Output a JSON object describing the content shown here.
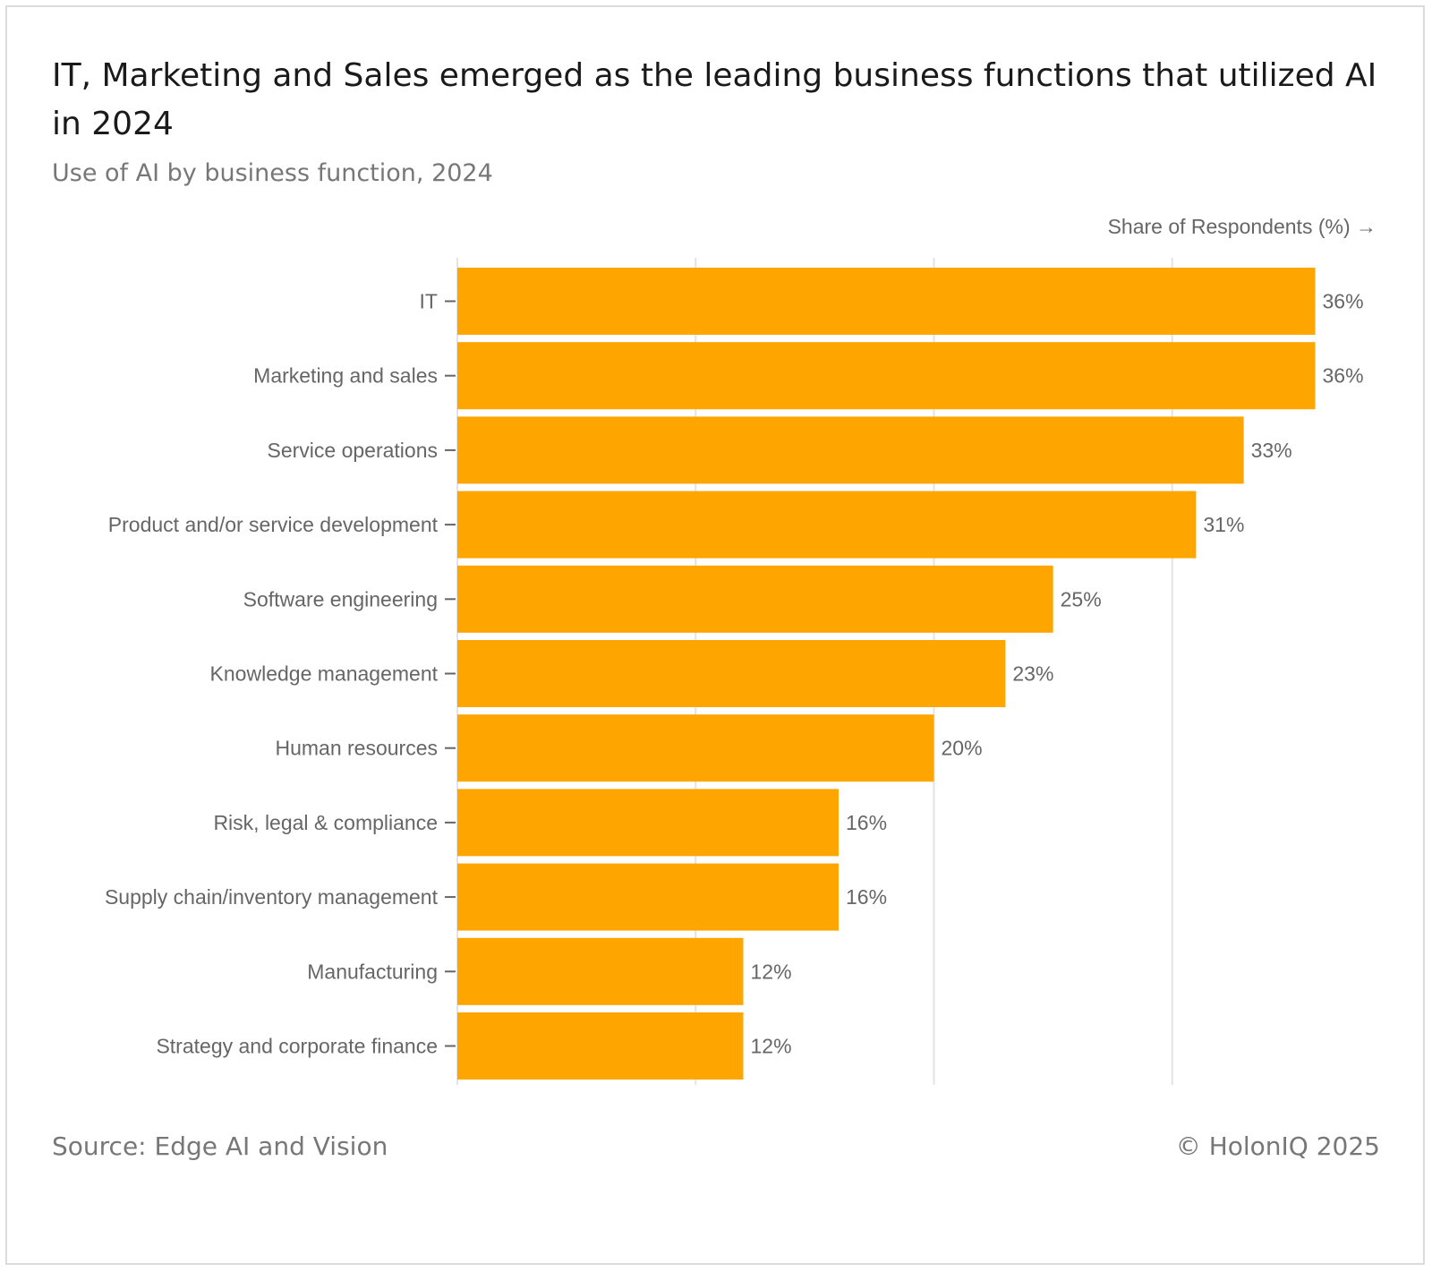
{
  "chart_data": {
    "type": "bar",
    "orientation": "horizontal",
    "title": "IT, Marketing and Sales emerged as the leading business functions that utilized AI in 2024",
    "subtitle": "Use of AI by business function, 2024",
    "xlabel": "Share of Respondents (%) →",
    "categories": [
      "IT",
      "Marketing and sales",
      "Service operations",
      "Product and/or service development",
      "Software engineering",
      "Knowledge management",
      "Human resources",
      "Risk, legal & compliance",
      "Supply chain/inventory management",
      "Manufacturing",
      "Strategy and corporate finance"
    ],
    "values": [
      36,
      36,
      33,
      31,
      25,
      23,
      20,
      16,
      16,
      12,
      12
    ],
    "value_labels": [
      "36%",
      "36%",
      "33%",
      "31%",
      "25%",
      "23%",
      "20%",
      "16%",
      "16%",
      "12%",
      "12%"
    ],
    "xlim": [
      0,
      40
    ],
    "gridlines_at": [
      10,
      20,
      30
    ],
    "grid": true,
    "bar_color": "#FFA500"
  },
  "footer": {
    "source": "Source: Edge AI and Vision",
    "copyright": "© HolonIQ 2025"
  }
}
